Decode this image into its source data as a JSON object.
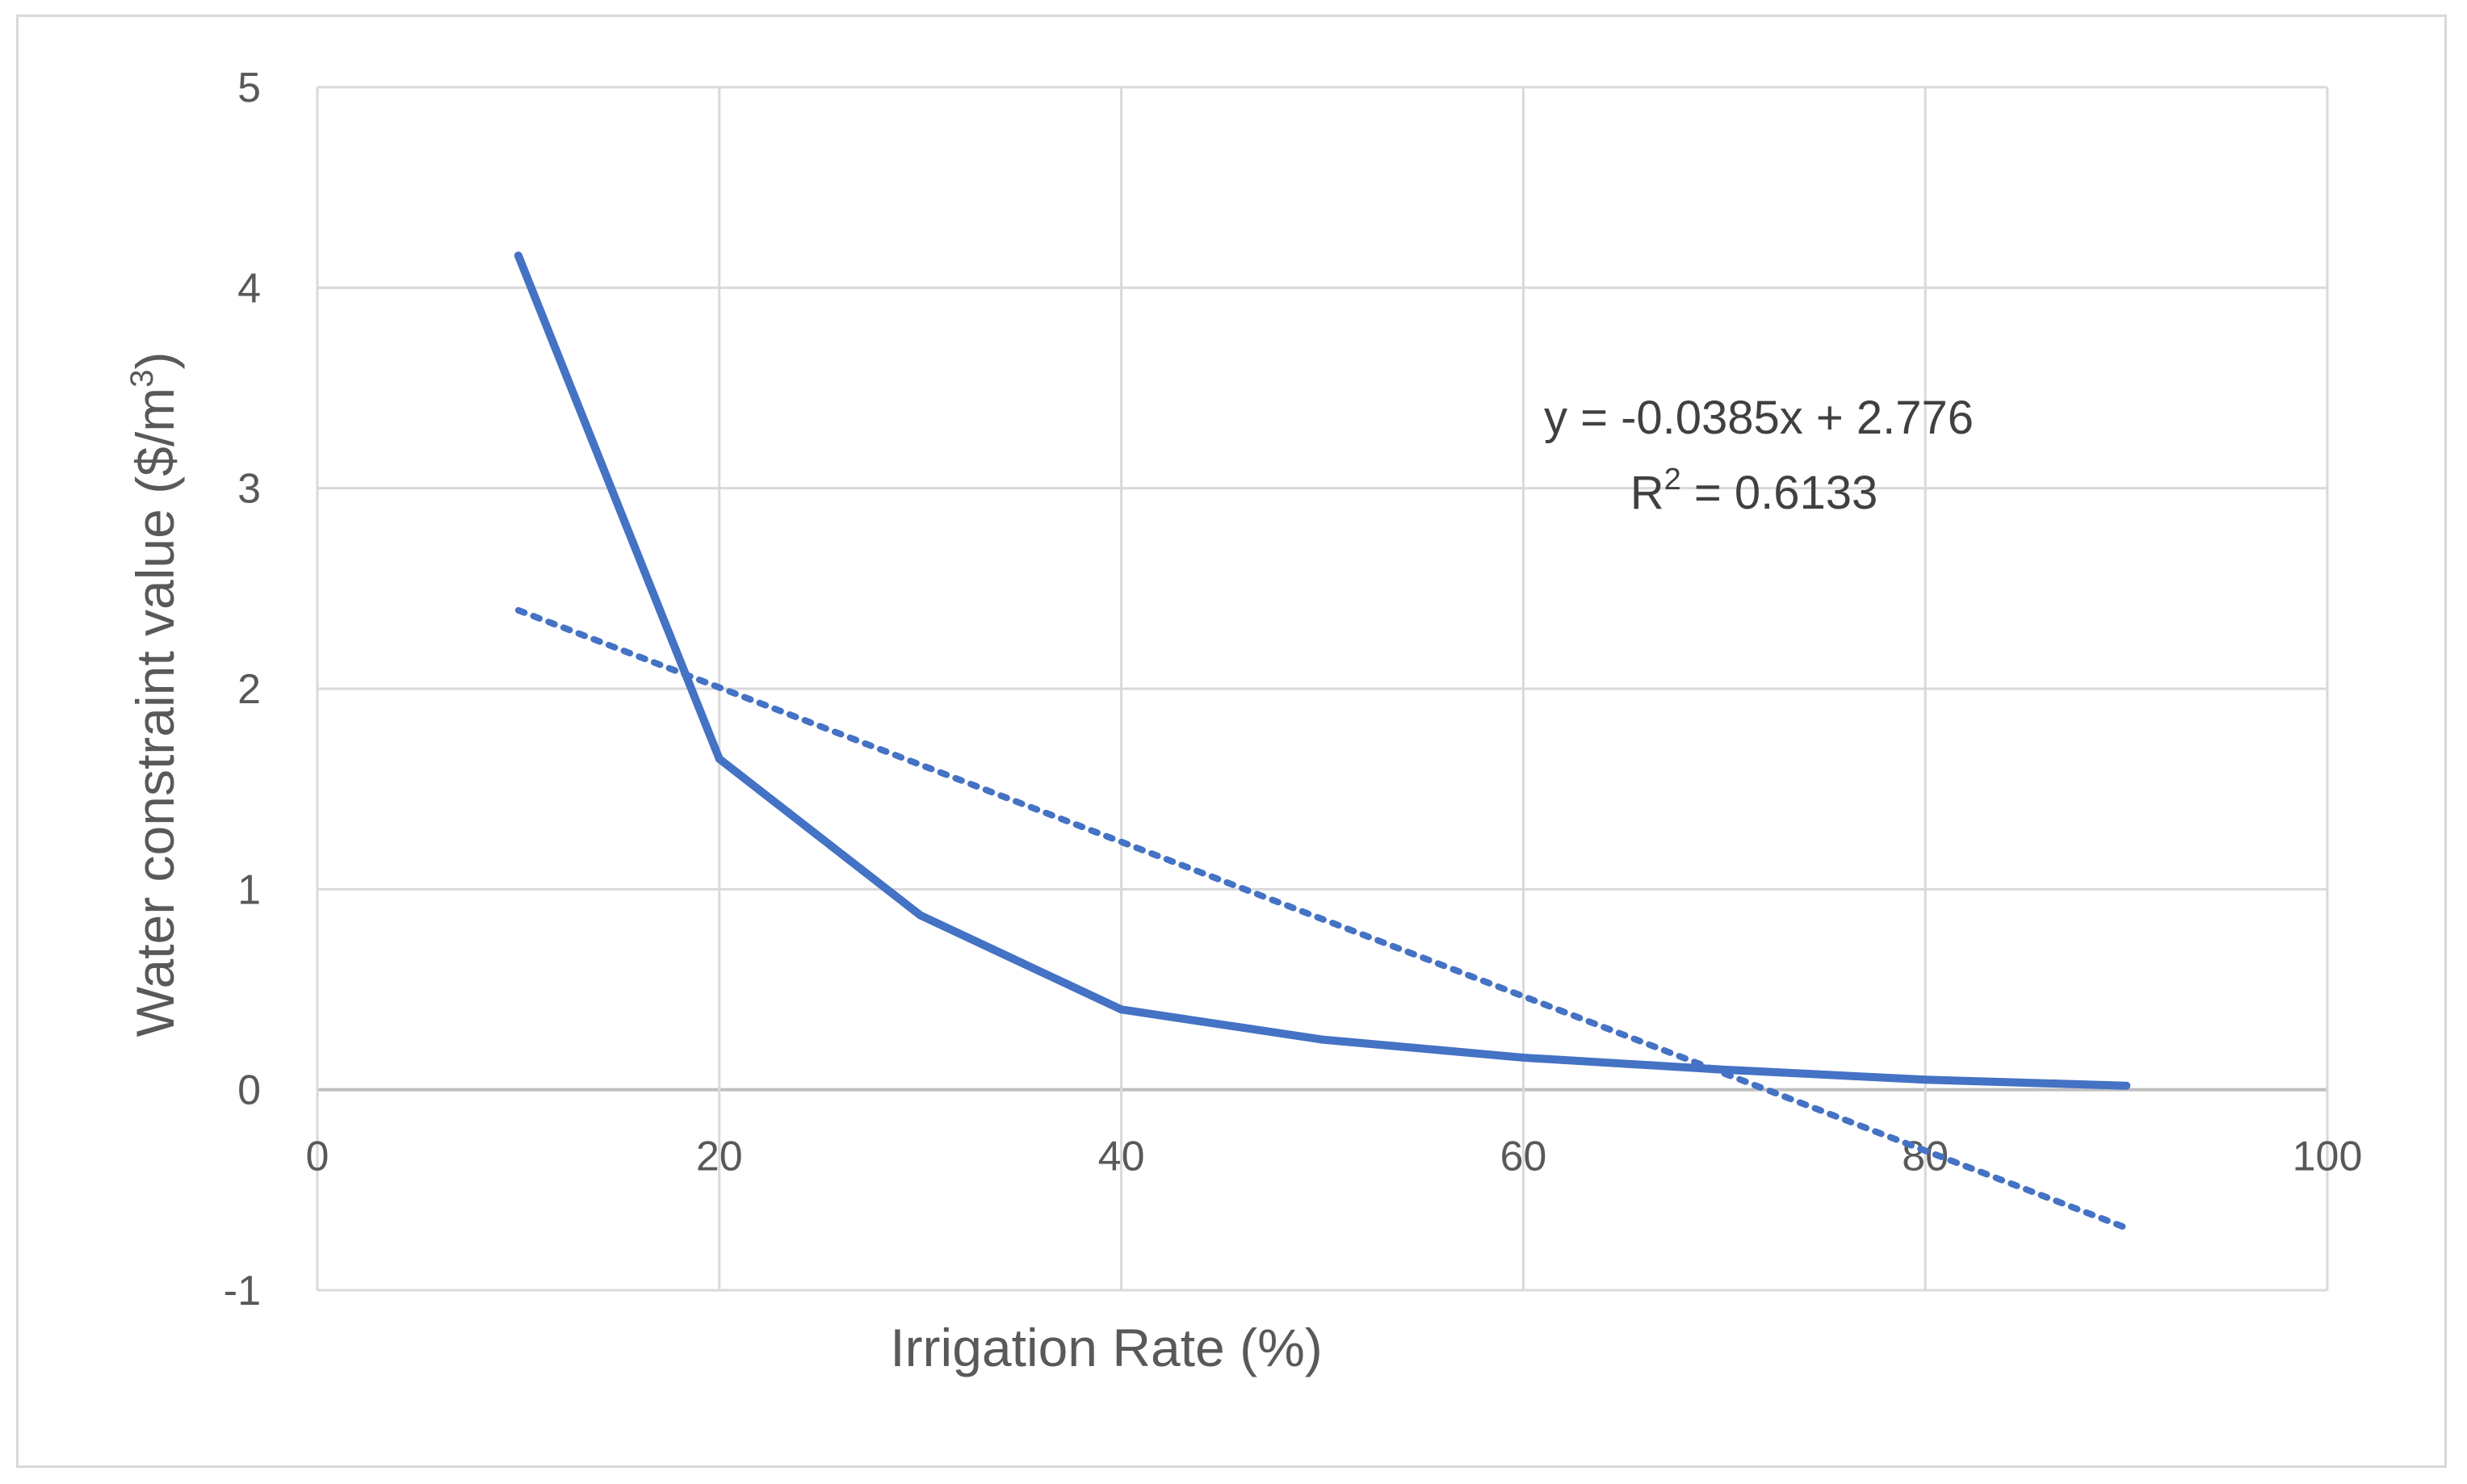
{
  "chart_data": {
    "type": "line",
    "title": "",
    "xlabel": "Irrigation Rate (%)",
    "ylabel": "Water constraint value ($/m",
    "ylabel_superscript": "3",
    "ylabel_suffix": ")",
    "xlim": [
      0,
      100
    ],
    "ylim": [
      -1,
      5
    ],
    "x_ticks": [
      0,
      20,
      40,
      60,
      80,
      100
    ],
    "y_ticks": [
      -1,
      0,
      1,
      2,
      3,
      4,
      5
    ],
    "x_tick_labels": [
      "0",
      "20",
      "40",
      "60",
      "80",
      "100"
    ],
    "y_tick_labels": [
      "-1",
      "0",
      "1",
      "2",
      "3",
      "4",
      "5"
    ],
    "grid": true,
    "series": [
      {
        "name": "Water constraint value",
        "style": "solid",
        "color": "#4472C4",
        "x": [
          10,
          20,
          30,
          40,
          50,
          60,
          70,
          80,
          90
        ],
        "y": [
          4.16,
          1.65,
          0.87,
          0.4,
          0.25,
          0.16,
          0.1,
          0.05,
          0.02
        ]
      },
      {
        "name": "Linear trendline",
        "style": "dotted",
        "color": "#4472C4",
        "slope": -0.0385,
        "intercept": 2.776,
        "x": [
          10,
          90
        ]
      }
    ],
    "annotations": {
      "equation": "y = -0.0385x + 2.776",
      "r_squared_prefix": "R",
      "r_squared_superscript": "2",
      "r_squared_value": " = 0.6133"
    }
  }
}
